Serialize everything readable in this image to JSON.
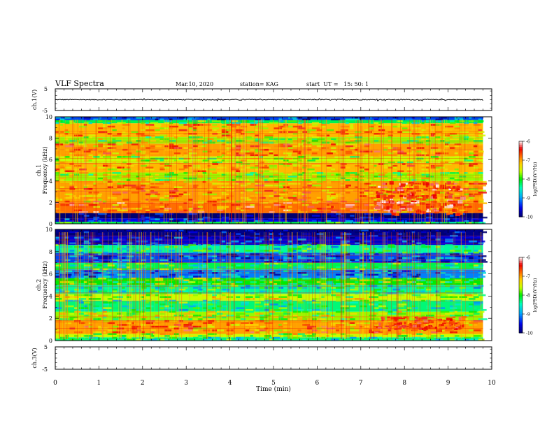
{
  "header": {
    "title": "VLF Spectra",
    "date": "Mar.10, 2020",
    "station": "station= KAG",
    "start": "start  UT =   15: 50: 1"
  },
  "chart_data": [
    {
      "type": "line",
      "panel": "ch1-waveform",
      "ylabel": "ch.1(V)",
      "yticks": [
        "5",
        "-5"
      ],
      "ylim": [
        -5,
        5
      ],
      "xlim": [
        0,
        10
      ],
      "series": [
        {
          "values_summary": "near 0 V with small noise to ~9.8 min"
        }
      ]
    },
    {
      "type": "heatmap",
      "panel": "ch1-spectrogram",
      "ylabel_top": "ch.1",
      "ylabel": "Frequency (kHz)",
      "yticks": [
        "0",
        "2",
        "4",
        "6",
        "8",
        "10"
      ],
      "ylim": [
        0,
        10
      ],
      "xlim": [
        0,
        10
      ],
      "data_end_min": 9.8,
      "colorbar": {
        "label": "log(PSD)(V²/Hz)",
        "ticks": [
          "-6",
          "-7",
          "-8",
          "-9",
          "-10"
        ],
        "range": [
          -10,
          -6
        ]
      },
      "bands": [
        {
          "f": [
            0.0,
            0.2
          ],
          "level": -8.2
        },
        {
          "f": [
            0.2,
            0.5
          ],
          "level": -9.5
        },
        {
          "f": [
            0.5,
            1.0
          ],
          "level": -10.0
        },
        {
          "f": [
            1.0,
            2.0
          ],
          "level": -6.8
        },
        {
          "f": [
            2.0,
            3.0
          ],
          "level": -7.0
        },
        {
          "f": [
            3.0,
            4.0
          ],
          "level": -7.0
        },
        {
          "f": [
            4.0,
            4.8
          ],
          "level": -7.7
        },
        {
          "f": [
            4.8,
            5.7
          ],
          "level": -7.1
        },
        {
          "f": [
            5.7,
            6.3
          ],
          "level": -7.6
        },
        {
          "f": [
            6.3,
            7.5
          ],
          "level": -7.0
        },
        {
          "f": [
            7.5,
            8.1
          ],
          "level": -7.7
        },
        {
          "f": [
            8.1,
            9.4
          ],
          "level": -7.1
        },
        {
          "f": [
            9.4,
            9.7
          ],
          "level": -8.2
        },
        {
          "f": [
            9.7,
            10.0
          ],
          "level": -9.3
        }
      ],
      "events": [
        {
          "t": [
            7.3,
            9.3
          ],
          "f": [
            1.0,
            4.0
          ],
          "level": -6.4,
          "note": "enhanced emission"
        }
      ]
    },
    {
      "type": "heatmap",
      "panel": "ch2-spectrogram",
      "ylabel_top": "ch.2",
      "ylabel": "Frequency (kHz)",
      "yticks": [
        "0",
        "2",
        "4",
        "6",
        "8",
        "10"
      ],
      "ylim": [
        0,
        10
      ],
      "xlim": [
        0,
        10
      ],
      "data_end_min": 9.8,
      "colorbar": {
        "label": "log(PSD)(V²/Hz)",
        "ticks": [
          "-6",
          "-7",
          "-8",
          "-9",
          "-10"
        ],
        "range": [
          -10,
          -6
        ]
      },
      "bands": [
        {
          "f": [
            0.0,
            0.3
          ],
          "level": -8.3
        },
        {
          "f": [
            0.3,
            0.6
          ],
          "level": -7.6
        },
        {
          "f": [
            0.6,
            1.8
          ],
          "level": -7.0
        },
        {
          "f": [
            1.8,
            2.6
          ],
          "level": -7.7
        },
        {
          "f": [
            2.6,
            3.6
          ],
          "level": -8.3
        },
        {
          "f": [
            3.6,
            4.2
          ],
          "level": -7.6
        },
        {
          "f": [
            4.2,
            5.0
          ],
          "level": -8.4
        },
        {
          "f": [
            5.0,
            5.6
          ],
          "level": -8.0
        },
        {
          "f": [
            5.6,
            6.4
          ],
          "level": -9.1
        },
        {
          "f": [
            6.4,
            7.0
          ],
          "level": -8.2
        },
        {
          "f": [
            7.0,
            7.9
          ],
          "level": -9.3
        },
        {
          "f": [
            7.9,
            8.6
          ],
          "level": -8.4
        },
        {
          "f": [
            8.6,
            9.4
          ],
          "level": -9.6
        },
        {
          "f": [
            9.4,
            10.0
          ],
          "level": -9.9
        }
      ],
      "events": [
        {
          "t": [
            7.3,
            9.3
          ],
          "f": [
            1.0,
            2.2
          ],
          "level": -6.6,
          "note": "enhanced emission"
        }
      ]
    },
    {
      "type": "line",
      "panel": "ch3-waveform",
      "ylabel": "ch.3(V)",
      "yticks": [
        "5",
        "-5"
      ],
      "ylim": [
        -5,
        5
      ],
      "xlim": [
        0,
        10
      ],
      "xlabel": "Time  (min)",
      "xticks": [
        "0",
        "1",
        "2",
        "3",
        "4",
        "5",
        "6",
        "7",
        "8",
        "9",
        "10"
      ],
      "series": []
    }
  ]
}
